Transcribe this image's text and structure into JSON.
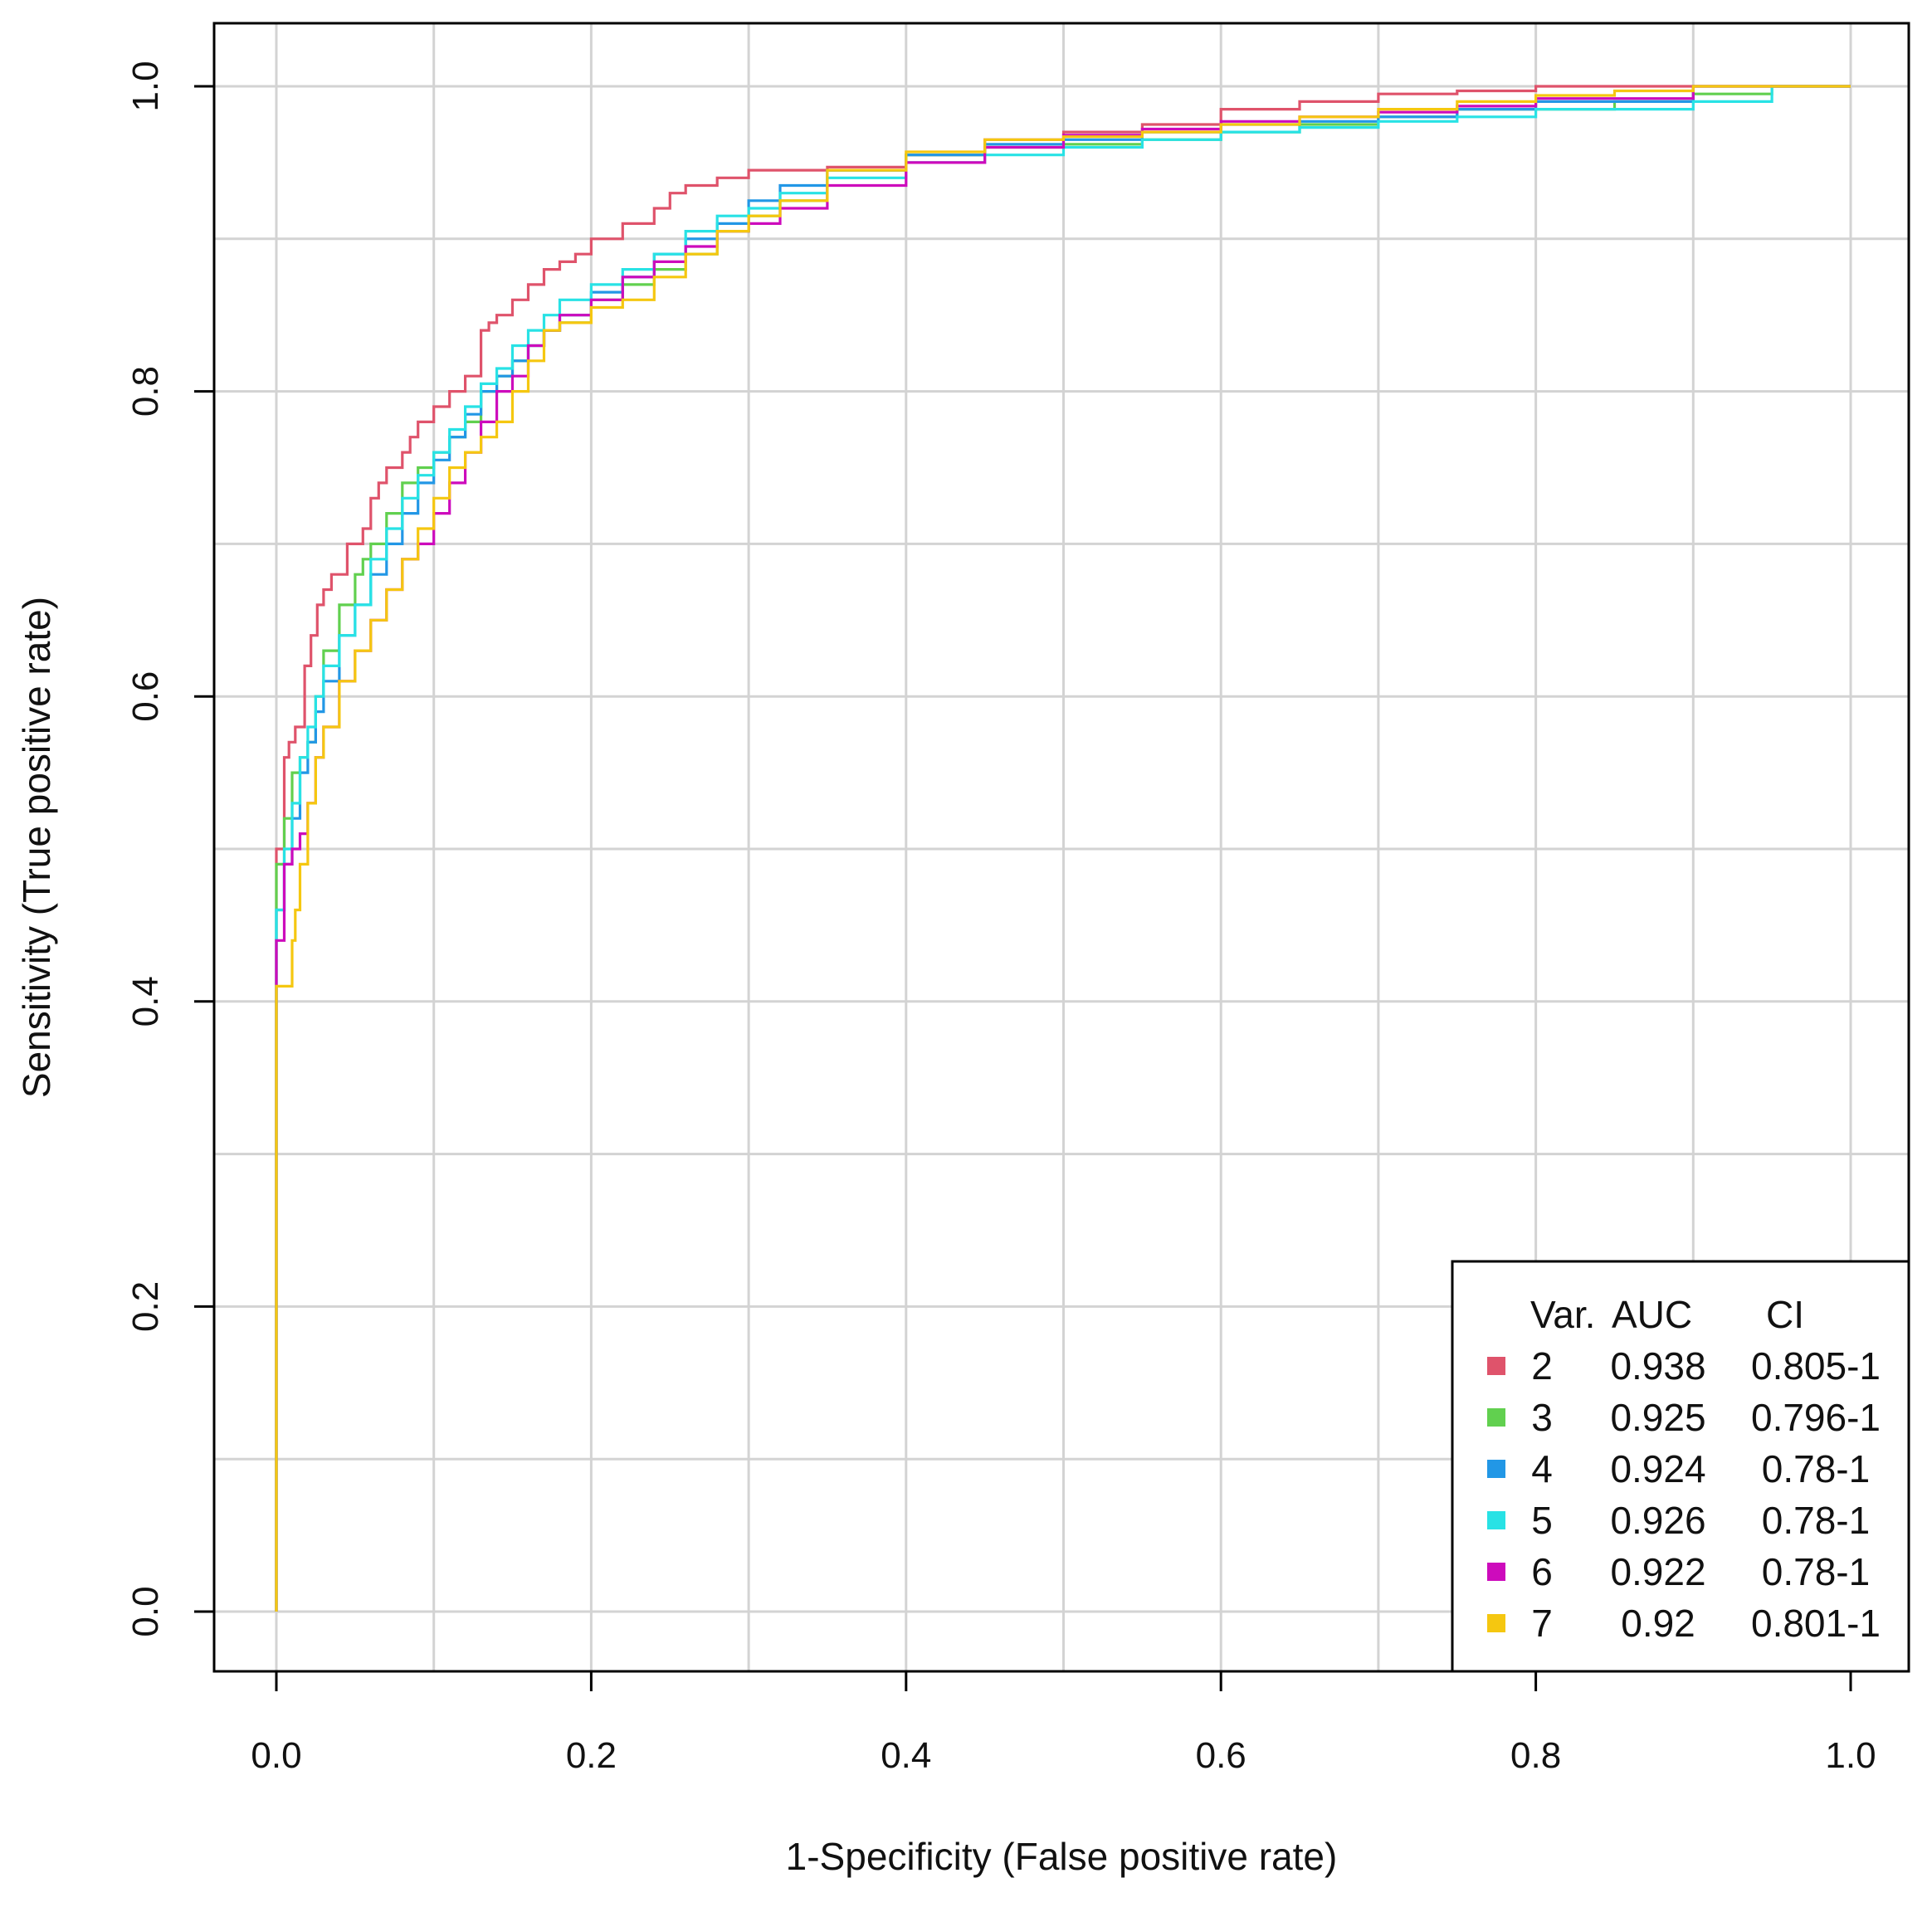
{
  "chart_data": {
    "type": "line",
    "title": "",
    "xlabel": "1-Specificity (False positive rate)",
    "ylabel": "Sensitivity (True positive rate)",
    "xlim": [
      0,
      1
    ],
    "ylim": [
      0,
      1
    ],
    "grid": true,
    "legend_position": "bottom-right",
    "x_ticks": [
      "0.0",
      "0.2",
      "0.4",
      "0.6",
      "0.8",
      "1.0"
    ],
    "y_ticks": [
      "0.0",
      "0.2",
      "0.4",
      "0.6",
      "0.8",
      "1.0"
    ],
    "legend": {
      "headers": [
        "Var.",
        "AUC",
        "CI"
      ]
    },
    "series": [
      {
        "name": "2",
        "auc": "0.938",
        "ci": "0.805-1",
        "color": "#df536b",
        "points": [
          [
            0,
            0
          ],
          [
            0,
            0.49
          ],
          [
            0.005,
            0.5
          ],
          [
            0.008,
            0.56
          ],
          [
            0.012,
            0.57
          ],
          [
            0.018,
            0.58
          ],
          [
            0.022,
            0.62
          ],
          [
            0.026,
            0.64
          ],
          [
            0.03,
            0.66
          ],
          [
            0.035,
            0.67
          ],
          [
            0.045,
            0.68
          ],
          [
            0.055,
            0.7
          ],
          [
            0.06,
            0.71
          ],
          [
            0.065,
            0.73
          ],
          [
            0.07,
            0.74
          ],
          [
            0.08,
            0.75
          ],
          [
            0.085,
            0.76
          ],
          [
            0.09,
            0.77
          ],
          [
            0.1,
            0.78
          ],
          [
            0.11,
            0.79
          ],
          [
            0.12,
            0.8
          ],
          [
            0.13,
            0.81
          ],
          [
            0.135,
            0.84
          ],
          [
            0.14,
            0.845
          ],
          [
            0.15,
            0.85
          ],
          [
            0.16,
            0.86
          ],
          [
            0.17,
            0.87
          ],
          [
            0.18,
            0.88
          ],
          [
            0.19,
            0.885
          ],
          [
            0.2,
            0.89
          ],
          [
            0.22,
            0.9
          ],
          [
            0.24,
            0.91
          ],
          [
            0.25,
            0.92
          ],
          [
            0.26,
            0.93
          ],
          [
            0.28,
            0.935
          ],
          [
            0.3,
            0.94
          ],
          [
            0.35,
            0.945
          ],
          [
            0.4,
            0.947
          ],
          [
            0.45,
            0.955
          ],
          [
            0.5,
            0.965
          ],
          [
            0.55,
            0.97
          ],
          [
            0.6,
            0.975
          ],
          [
            0.65,
            0.985
          ],
          [
            0.7,
            0.99
          ],
          [
            0.75,
            0.995
          ],
          [
            0.8,
            0.997
          ],
          [
            0.9,
            1
          ],
          [
            1,
            1
          ]
        ]
      },
      {
        "name": "3",
        "auc": "0.925",
        "ci": "0.796-1",
        "color": "#61d04f",
        "points": [
          [
            0,
            0
          ],
          [
            0,
            0.46
          ],
          [
            0.005,
            0.49
          ],
          [
            0.01,
            0.52
          ],
          [
            0.015,
            0.55
          ],
          [
            0.02,
            0.56
          ],
          [
            0.025,
            0.57
          ],
          [
            0.03,
            0.6
          ],
          [
            0.04,
            0.63
          ],
          [
            0.05,
            0.66
          ],
          [
            0.055,
            0.68
          ],
          [
            0.06,
            0.69
          ],
          [
            0.07,
            0.7
          ],
          [
            0.08,
            0.72
          ],
          [
            0.09,
            0.74
          ],
          [
            0.1,
            0.75
          ],
          [
            0.11,
            0.76
          ],
          [
            0.12,
            0.77
          ],
          [
            0.13,
            0.78
          ],
          [
            0.14,
            0.8
          ],
          [
            0.15,
            0.81
          ],
          [
            0.16,
            0.82
          ],
          [
            0.17,
            0.83
          ],
          [
            0.18,
            0.84
          ],
          [
            0.2,
            0.845
          ],
          [
            0.22,
            0.86
          ],
          [
            0.24,
            0.87
          ],
          [
            0.26,
            0.88
          ],
          [
            0.28,
            0.89
          ],
          [
            0.3,
            0.905
          ],
          [
            0.32,
            0.915
          ],
          [
            0.35,
            0.925
          ],
          [
            0.4,
            0.945
          ],
          [
            0.45,
            0.955
          ],
          [
            0.5,
            0.96
          ],
          [
            0.55,
            0.962
          ],
          [
            0.6,
            0.965
          ],
          [
            0.65,
            0.97
          ],
          [
            0.7,
            0.975
          ],
          [
            0.75,
            0.98
          ],
          [
            0.85,
            0.985
          ],
          [
            0.9,
            0.99
          ],
          [
            0.95,
            0.995
          ],
          [
            1,
            1
          ]
        ]
      },
      {
        "name": "4",
        "auc": "0.924",
        "ci": "0.78-1",
        "color": "#2297e6",
        "points": [
          [
            0,
            0
          ],
          [
            0,
            0.43
          ],
          [
            0.005,
            0.46
          ],
          [
            0.01,
            0.49
          ],
          [
            0.015,
            0.52
          ],
          [
            0.02,
            0.55
          ],
          [
            0.025,
            0.57
          ],
          [
            0.03,
            0.59
          ],
          [
            0.04,
            0.61
          ],
          [
            0.05,
            0.64
          ],
          [
            0.06,
            0.66
          ],
          [
            0.07,
            0.68
          ],
          [
            0.08,
            0.7
          ],
          [
            0.09,
            0.72
          ],
          [
            0.1,
            0.74
          ],
          [
            0.11,
            0.755
          ],
          [
            0.12,
            0.77
          ],
          [
            0.13,
            0.785
          ],
          [
            0.14,
            0.8
          ],
          [
            0.15,
            0.81
          ],
          [
            0.16,
            0.82
          ],
          [
            0.17,
            0.83
          ],
          [
            0.18,
            0.84
          ],
          [
            0.2,
            0.85
          ],
          [
            0.22,
            0.865
          ],
          [
            0.24,
            0.875
          ],
          [
            0.26,
            0.89
          ],
          [
            0.28,
            0.9
          ],
          [
            0.3,
            0.91
          ],
          [
            0.32,
            0.925
          ],
          [
            0.35,
            0.935
          ],
          [
            0.4,
            0.945
          ],
          [
            0.45,
            0.955
          ],
          [
            0.5,
            0.962
          ],
          [
            0.55,
            0.965
          ],
          [
            0.6,
            0.97
          ],
          [
            0.65,
            0.975
          ],
          [
            0.7,
            0.977
          ],
          [
            0.75,
            0.98
          ],
          [
            0.8,
            0.985
          ],
          [
            0.9,
            0.99
          ],
          [
            1,
            1
          ]
        ]
      },
      {
        "name": "5",
        "auc": "0.926",
        "ci": "0.78-1",
        "color": "#28e2e5",
        "points": [
          [
            0,
            0
          ],
          [
            0,
            0.42
          ],
          [
            0.005,
            0.46
          ],
          [
            0.01,
            0.5
          ],
          [
            0.015,
            0.53
          ],
          [
            0.02,
            0.56
          ],
          [
            0.025,
            0.58
          ],
          [
            0.03,
            0.6
          ],
          [
            0.04,
            0.62
          ],
          [
            0.05,
            0.64
          ],
          [
            0.06,
            0.66
          ],
          [
            0.07,
            0.69
          ],
          [
            0.08,
            0.71
          ],
          [
            0.09,
            0.73
          ],
          [
            0.1,
            0.745
          ],
          [
            0.11,
            0.76
          ],
          [
            0.12,
            0.775
          ],
          [
            0.13,
            0.79
          ],
          [
            0.14,
            0.805
          ],
          [
            0.15,
            0.815
          ],
          [
            0.16,
            0.83
          ],
          [
            0.17,
            0.84
          ],
          [
            0.18,
            0.85
          ],
          [
            0.2,
            0.86
          ],
          [
            0.22,
            0.87
          ],
          [
            0.24,
            0.88
          ],
          [
            0.26,
            0.89
          ],
          [
            0.28,
            0.905
          ],
          [
            0.3,
            0.915
          ],
          [
            0.32,
            0.92
          ],
          [
            0.35,
            0.93
          ],
          [
            0.4,
            0.94
          ],
          [
            0.45,
            0.95
          ],
          [
            0.5,
            0.955
          ],
          [
            0.55,
            0.96
          ],
          [
            0.6,
            0.965
          ],
          [
            0.65,
            0.97
          ],
          [
            0.7,
            0.973
          ],
          [
            0.75,
            0.977
          ],
          [
            0.8,
            0.98
          ],
          [
            0.9,
            0.985
          ],
          [
            0.95,
            0.99
          ],
          [
            1,
            1
          ]
        ]
      },
      {
        "name": "6",
        "auc": "0.922",
        "ci": "0.78-1",
        "color": "#cd0bbc",
        "points": [
          [
            0,
            0
          ],
          [
            0,
            0.4
          ],
          [
            0.005,
            0.44
          ],
          [
            0.01,
            0.49
          ],
          [
            0.015,
            0.5
          ],
          [
            0.02,
            0.51
          ],
          [
            0.025,
            0.53
          ],
          [
            0.03,
            0.56
          ],
          [
            0.04,
            0.58
          ],
          [
            0.05,
            0.61
          ],
          [
            0.06,
            0.63
          ],
          [
            0.07,
            0.65
          ],
          [
            0.08,
            0.67
          ],
          [
            0.09,
            0.69
          ],
          [
            0.1,
            0.7
          ],
          [
            0.11,
            0.72
          ],
          [
            0.12,
            0.74
          ],
          [
            0.13,
            0.76
          ],
          [
            0.14,
            0.78
          ],
          [
            0.15,
            0.8
          ],
          [
            0.16,
            0.81
          ],
          [
            0.17,
            0.83
          ],
          [
            0.18,
            0.84
          ],
          [
            0.2,
            0.85
          ],
          [
            0.22,
            0.86
          ],
          [
            0.24,
            0.875
          ],
          [
            0.26,
            0.885
          ],
          [
            0.28,
            0.895
          ],
          [
            0.3,
            0.905
          ],
          [
            0.32,
            0.91
          ],
          [
            0.35,
            0.92
          ],
          [
            0.4,
            0.935
          ],
          [
            0.45,
            0.95
          ],
          [
            0.5,
            0.96
          ],
          [
            0.55,
            0.968
          ],
          [
            0.6,
            0.972
          ],
          [
            0.65,
            0.977
          ],
          [
            0.7,
            0.98
          ],
          [
            0.75,
            0.983
          ],
          [
            0.8,
            0.987
          ],
          [
            0.9,
            0.992
          ],
          [
            1,
            1
          ]
        ]
      },
      {
        "name": "7",
        "auc": "0.92",
        "ci": "0.801-1",
        "color": "#f5c710",
        "points": [
          [
            0,
            0
          ],
          [
            0,
            0.4
          ],
          [
            0.01,
            0.41
          ],
          [
            0.012,
            0.44
          ],
          [
            0.015,
            0.46
          ],
          [
            0.02,
            0.49
          ],
          [
            0.025,
            0.53
          ],
          [
            0.03,
            0.56
          ],
          [
            0.04,
            0.58
          ],
          [
            0.05,
            0.61
          ],
          [
            0.06,
            0.63
          ],
          [
            0.07,
            0.65
          ],
          [
            0.08,
            0.67
          ],
          [
            0.09,
            0.69
          ],
          [
            0.1,
            0.71
          ],
          [
            0.11,
            0.73
          ],
          [
            0.12,
            0.75
          ],
          [
            0.13,
            0.76
          ],
          [
            0.14,
            0.77
          ],
          [
            0.15,
            0.78
          ],
          [
            0.16,
            0.8
          ],
          [
            0.17,
            0.82
          ],
          [
            0.18,
            0.84
          ],
          [
            0.2,
            0.845
          ],
          [
            0.22,
            0.855
          ],
          [
            0.24,
            0.86
          ],
          [
            0.26,
            0.875
          ],
          [
            0.28,
            0.89
          ],
          [
            0.3,
            0.905
          ],
          [
            0.32,
            0.915
          ],
          [
            0.35,
            0.925
          ],
          [
            0.4,
            0.945
          ],
          [
            0.45,
            0.957
          ],
          [
            0.5,
            0.965
          ],
          [
            0.55,
            0.967
          ],
          [
            0.6,
            0.97
          ],
          [
            0.65,
            0.975
          ],
          [
            0.7,
            0.98
          ],
          [
            0.75,
            0.985
          ],
          [
            0.8,
            0.99
          ],
          [
            0.85,
            0.994
          ],
          [
            0.9,
            0.997
          ],
          [
            1,
            1
          ]
        ]
      }
    ]
  }
}
